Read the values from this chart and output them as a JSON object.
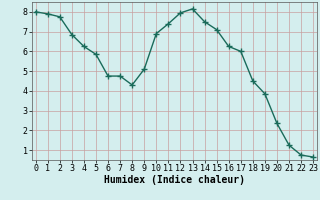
{
  "x": [
    0,
    1,
    2,
    3,
    4,
    5,
    6,
    7,
    8,
    9,
    10,
    11,
    12,
    13,
    14,
    15,
    16,
    17,
    18,
    19,
    20,
    21,
    22,
    23
  ],
  "y": [
    8.0,
    7.9,
    7.75,
    6.85,
    6.25,
    5.85,
    4.75,
    4.75,
    4.3,
    5.1,
    6.9,
    7.4,
    7.95,
    8.15,
    7.5,
    7.1,
    6.25,
    6.0,
    4.5,
    3.85,
    2.35,
    1.25,
    0.75,
    0.65
  ],
  "line_color": "#1a6b5a",
  "marker": "+",
  "markersize": 4,
  "linewidth": 1.0,
  "markeredgewidth": 1.0,
  "xlabel": "Humidex (Indice chaleur)",
  "xlim": [
    -0.3,
    23.3
  ],
  "ylim": [
    0.5,
    8.5
  ],
  "yticks": [
    1,
    2,
    3,
    4,
    5,
    6,
    7,
    8
  ],
  "xticks": [
    0,
    1,
    2,
    3,
    4,
    5,
    6,
    7,
    8,
    9,
    10,
    11,
    12,
    13,
    14,
    15,
    16,
    17,
    18,
    19,
    20,
    21,
    22,
    23
  ],
  "bg_color": "#d4eeee",
  "grid_color_major": "#c8a0a0",
  "grid_color_minor": "#c0d8d8",
  "xlabel_fontsize": 7,
  "tick_fontsize": 6
}
